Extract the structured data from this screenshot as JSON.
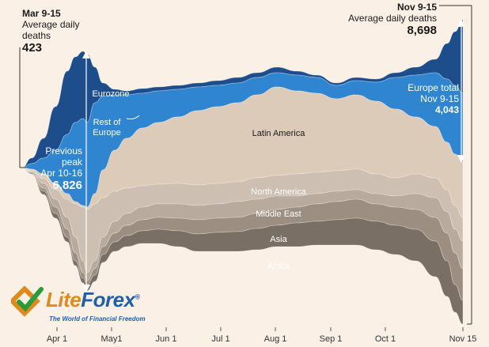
{
  "chart_data": {
    "type": "area",
    "x_ticks": [
      "Apr 1",
      "May1",
      "Jun 1",
      "Jul 1",
      "Aug 1",
      "Sep 1",
      "Oct 1",
      "Nov 15"
    ],
    "series_order_top_to_bottom": [
      "Eurozone",
      "Rest of Europe",
      "Latin America",
      "North America",
      "Middle East",
      "Asia",
      "Africa"
    ],
    "series": [
      {
        "name": "Eurozone",
        "color": "#1e4d8c",
        "label_color": "white"
      },
      {
        "name": "Rest of Europe",
        "display_label": "Rest of\nEurope",
        "color": "#2f85cf",
        "label_color": "white"
      },
      {
        "name": "Latin America",
        "color": "#dccbb9",
        "label_color": "dark"
      },
      {
        "name": "North America",
        "color": "#cdbfb2",
        "label_color": "white"
      },
      {
        "name": "Middle East",
        "color": "#b8aa9c",
        "label_color": "white"
      },
      {
        "name": "Asia",
        "color": "#9c8f82",
        "label_color": "white"
      },
      {
        "name": "Africa",
        "color": "#7a6f65",
        "label_color": "white"
      }
    ],
    "annotations": {
      "start": {
        "period": "Mar 9-15",
        "label": "Average daily\ndeaths",
        "value": "423"
      },
      "end": {
        "period": "Nov 9-15",
        "label": "Average daily deaths",
        "value": "8,698"
      },
      "previous_peak": {
        "label": "Previous\npeak\nApr 10-16",
        "value": "6,826"
      },
      "europe_total": {
        "label": "Europe total\nNov 9-15",
        "value": "4,043"
      }
    }
  },
  "watermark": {
    "name_part1": "Lite",
    "name_part2": "Forex",
    "registered": "®",
    "tagline": "The World of Financial Freedom"
  }
}
